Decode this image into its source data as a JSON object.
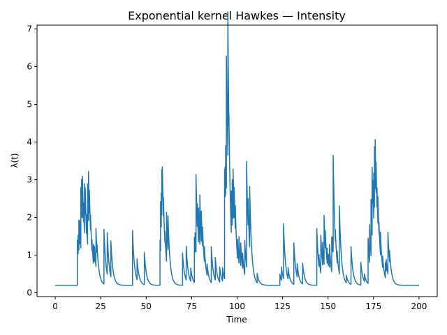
{
  "chart_data": {
    "type": "line",
    "title": "Exponential kernel Hawkes — Intensity",
    "xlabel": "Time",
    "ylabel": "λ(t)",
    "xlim": [
      -10,
      210
    ],
    "ylim": [
      -0.1,
      7.1
    ],
    "xticks": [
      0,
      25,
      50,
      75,
      100,
      125,
      150,
      175,
      200
    ],
    "yticks": [
      0,
      1,
      2,
      3,
      4,
      5,
      6,
      7
    ],
    "grid": false,
    "legend": "none",
    "series_color": "#1f77b4",
    "baseline": 0.2,
    "decay": 0.9,
    "events": [
      [
        12.2,
        1.2
      ],
      [
        12.6,
        0.5
      ],
      [
        13.0,
        0.8
      ],
      [
        13.5,
        0.6
      ],
      [
        14.1,
        1.6
      ],
      [
        14.5,
        1.0
      ],
      [
        15.0,
        1.1
      ],
      [
        15.6,
        0.5
      ],
      [
        16.1,
        1.3
      ],
      [
        16.5,
        0.7
      ],
      [
        17.2,
        0.5
      ],
      [
        17.8,
        1.6
      ],
      [
        18.3,
        1.3
      ],
      [
        18.8,
        0.6
      ],
      [
        19.4,
        0.4
      ],
      [
        20.2,
        0.3
      ],
      [
        21.0,
        0.5
      ],
      [
        21.6,
        0.4
      ],
      [
        22.4,
        1.0
      ],
      [
        23.0,
        0.2
      ],
      [
        26.8,
        1.45
      ],
      [
        28.6,
        1.1
      ],
      [
        30.6,
        0.95
      ],
      [
        42.5,
        1.45
      ],
      [
        45.0,
        0.55
      ],
      [
        49.0,
        0.85
      ],
      [
        57.6,
        1.2
      ],
      [
        57.9,
        1.3
      ],
      [
        58.3,
        0.9
      ],
      [
        58.6,
        1.2
      ],
      [
        58.9,
        0.8
      ],
      [
        59.5,
        0.5
      ],
      [
        60.3,
        0.3
      ],
      [
        61.2,
        1.3
      ],
      [
        62.0,
        0.9
      ],
      [
        70.0,
        0.85
      ],
      [
        72.0,
        0.9
      ],
      [
        74.5,
        0.35
      ],
      [
        76.5,
        1.2
      ],
      [
        76.9,
        0.5
      ],
      [
        77.4,
        2.05
      ],
      [
        78.1,
        0.6
      ],
      [
        78.8,
        0.9
      ],
      [
        79.5,
        1.3
      ],
      [
        80.3,
        0.8
      ],
      [
        81.0,
        0.5
      ],
      [
        82.0,
        0.4
      ],
      [
        83.5,
        0.3
      ],
      [
        85.8,
        0.95
      ],
      [
        88.0,
        0.6
      ],
      [
        90.4,
        0.4
      ],
      [
        92.0,
        0.35
      ],
      [
        93.1,
        2.9
      ],
      [
        93.4,
        0.8
      ],
      [
        93.7,
        1.3
      ],
      [
        94.1,
        3.5
      ],
      [
        94.5,
        0.7
      ],
      [
        94.9,
        3.8
      ],
      [
        95.5,
        0.3
      ],
      [
        96.8,
        1.1
      ],
      [
        97.3,
        1.2
      ],
      [
        97.8,
        1.3
      ],
      [
        98.4,
        0.8
      ],
      [
        99.0,
        0.6
      ],
      [
        100.2,
        0.5
      ],
      [
        101.0,
        0.7
      ],
      [
        102.0,
        0.6
      ],
      [
        103.0,
        0.4
      ],
      [
        104.2,
        0.9
      ],
      [
        105.2,
        2.8
      ],
      [
        106.0,
        0.7
      ],
      [
        106.9,
        1.6
      ],
      [
        111.0,
        0.25
      ],
      [
        123.5,
        0.3
      ],
      [
        124.4,
        0.35
      ],
      [
        125.5,
        1.45
      ],
      [
        128.0,
        0.3
      ],
      [
        131.2,
        1.1
      ],
      [
        133.0,
        0.35
      ],
      [
        136.0,
        0.55
      ],
      [
        143.8,
        1.5
      ],
      [
        145.0,
        0.3
      ],
      [
        146.0,
        1.0
      ],
      [
        147.0,
        0.6
      ],
      [
        147.8,
        1.3
      ],
      [
        148.5,
        0.45
      ],
      [
        149.5,
        0.4
      ],
      [
        150.2,
        0.3
      ],
      [
        150.8,
        0.6
      ],
      [
        152.0,
        0.9
      ],
      [
        152.4,
        0.4
      ],
      [
        152.8,
        2.55
      ],
      [
        154.0,
        0.3
      ],
      [
        155.0,
        0.3
      ],
      [
        156.2,
        1.8
      ],
      [
        160.0,
        0.2
      ],
      [
        162.6,
        1.0
      ],
      [
        168.0,
        0.6
      ],
      [
        170.0,
        0.2
      ],
      [
        172.0,
        1.2
      ],
      [
        172.8,
        1.0
      ],
      [
        173.6,
        1.5
      ],
      [
        174.2,
        1.8
      ],
      [
        174.6,
        0.6
      ],
      [
        175.1,
        1.2
      ],
      [
        175.5,
        1.6
      ],
      [
        175.9,
        1.3
      ],
      [
        176.4,
        0.8
      ],
      [
        176.9,
        0.5
      ],
      [
        177.4,
        0.7
      ],
      [
        178.0,
        0.3
      ],
      [
        178.8,
        0.6
      ],
      [
        180.0,
        0.3
      ],
      [
        181.5,
        0.4
      ],
      [
        182.0,
        0.3
      ],
      [
        182.9,
        1.1
      ],
      [
        183.8,
        0.3
      ]
    ]
  }
}
